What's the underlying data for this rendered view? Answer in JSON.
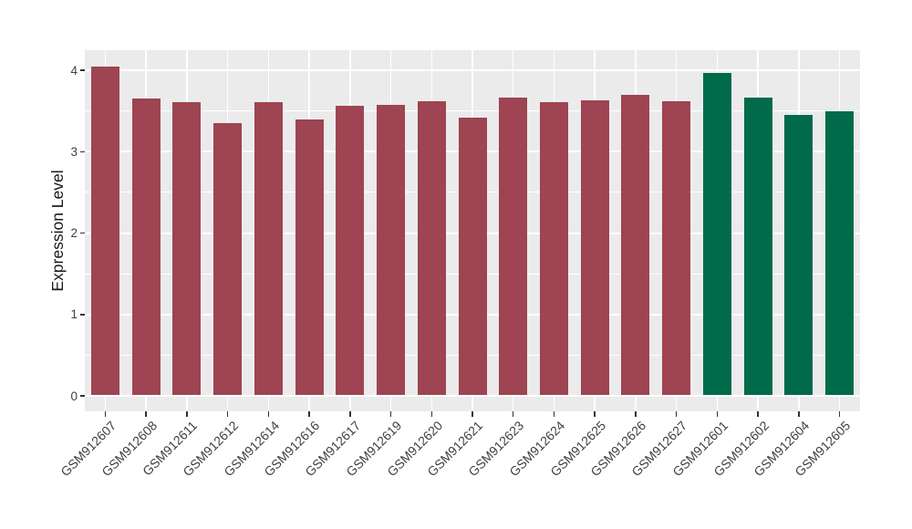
{
  "figure": {
    "background_color": "#FFFFFF",
    "panel_background_color": "#EBEBEB",
    "gridline_color": "#FFFFFF",
    "tick_color": "#333333",
    "tick_label_color": "#404040",
    "axis_title_color": "#1A1A1A"
  },
  "chart_data": {
    "type": "bar",
    "title": "",
    "xlabel": "",
    "ylabel": "Expression Level",
    "ylim": [
      -0.2,
      4.25
    ],
    "yticks": [
      0,
      1,
      2,
      3,
      4
    ],
    "ytick_labels": [
      "0",
      "1",
      "2",
      "3",
      "4"
    ],
    "minor_gridlines": [
      0.5,
      1.5,
      2.5,
      3.5
    ],
    "grid": "on",
    "legend_position": "none",
    "categories": [
      "GSM912607",
      "GSM912608",
      "GSM912611",
      "GSM912612",
      "GSM912614",
      "GSM912616",
      "GSM912617",
      "GSM912619",
      "GSM912620",
      "GSM912621",
      "GSM912623",
      "GSM912624",
      "GSM912625",
      "GSM912626",
      "GSM912627",
      "GSM912601",
      "GSM912602",
      "GSM912604",
      "GSM912605"
    ],
    "values": [
      4.03,
      3.64,
      3.6,
      3.34,
      3.6,
      3.38,
      3.55,
      3.56,
      3.61,
      3.41,
      3.65,
      3.6,
      3.62,
      3.69,
      3.61,
      3.96,
      3.65,
      3.44,
      3.48
    ],
    "bar_colors": [
      "#9E4452",
      "#9E4452",
      "#9E4452",
      "#9E4452",
      "#9E4452",
      "#9E4452",
      "#9E4452",
      "#9E4452",
      "#9E4452",
      "#9E4452",
      "#9E4452",
      "#9E4452",
      "#9E4452",
      "#9E4452",
      "#9E4452",
      "#006A4B",
      "#006A4B",
      "#006A4B",
      "#006A4B"
    ],
    "groups": [
      {
        "color": "#9E4452",
        "count": 15
      },
      {
        "color": "#006A4B",
        "count": 4
      }
    ]
  }
}
